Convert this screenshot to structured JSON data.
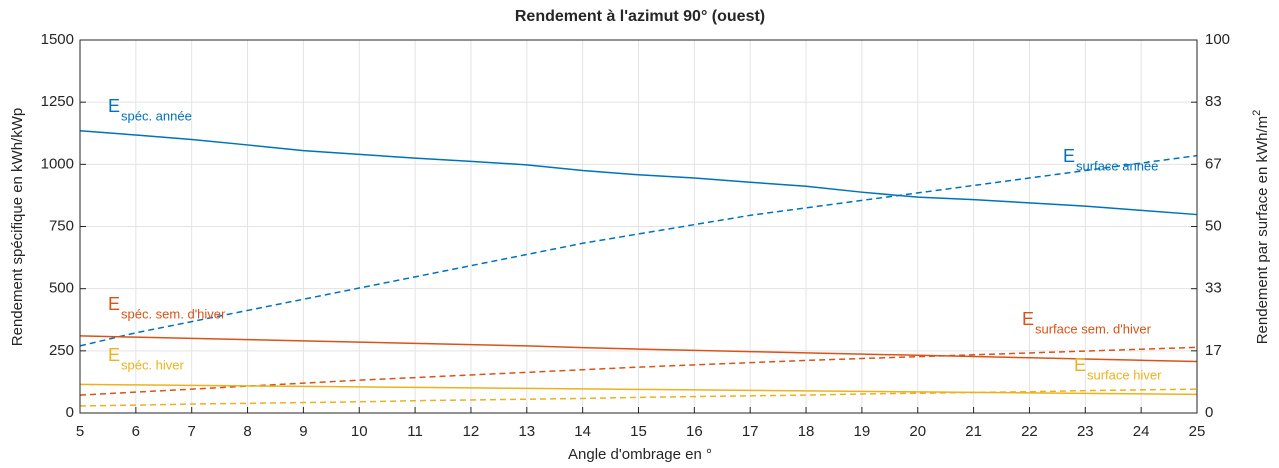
{
  "chart_data": {
    "type": "line",
    "title": "Rendement à l'azimut 90° (ouest)",
    "xlabel": "Angle d'ombrage en °",
    "ylabel": "Rendement spécifique en kWh/kWp",
    "y2label": {
      "text": "Rendement par surface en kWh/m",
      "superscript": "2"
    },
    "x": [
      5,
      6,
      7,
      8,
      9,
      10,
      11,
      12,
      13,
      14,
      15,
      16,
      17,
      18,
      19,
      20,
      21,
      22,
      23,
      24,
      25
    ],
    "xlim": [
      5,
      25
    ],
    "xticks": [
      5,
      6,
      7,
      8,
      9,
      10,
      11,
      12,
      13,
      14,
      15,
      16,
      17,
      18,
      19,
      20,
      21,
      22,
      23,
      24,
      25
    ],
    "ylim": [
      0,
      1500
    ],
    "yticks": [
      0,
      250,
      500,
      750,
      1000,
      1250,
      1500
    ],
    "y2lim": [
      0,
      100
    ],
    "y2ticks": [
      0,
      {
        "value": 16.67,
        "label": "17"
      },
      {
        "value": 33.33,
        "label": "33"
      },
      50,
      {
        "value": 66.67,
        "label": "67"
      },
      {
        "value": 83.33,
        "label": "83"
      },
      100
    ],
    "grid": true,
    "series": [
      {
        "name": "spéc. année",
        "color": "#0072bd",
        "linestyle": "solid",
        "values": [
          1135,
          1118,
          1100,
          1078,
          1055,
          1040,
          1025,
          1012,
          998,
          975,
          958,
          945,
          928,
          912,
          888,
          868,
          858,
          845,
          832,
          815,
          798
        ]
      },
      {
        "name": "surface année",
        "color": "#0072bd",
        "linestyle": "dashed",
        "axis": "y2",
        "values": [
          18,
          21.5,
          24.5,
          27.5,
          30.5,
          33.5,
          36.5,
          39.5,
          42.5,
          45.5,
          48,
          50.5,
          53,
          55,
          57,
          59,
          61,
          63,
          65,
          67,
          69
        ]
      },
      {
        "name": "spéc. sem. d'hiver",
        "color": "#d95319",
        "linestyle": "solid",
        "values": [
          310,
          305,
          300,
          295,
          290,
          285,
          280,
          275,
          270,
          263,
          257,
          252,
          247,
          242,
          237,
          232,
          227,
          222,
          217,
          212,
          207
        ]
      },
      {
        "name": "surface sem. d'hiver",
        "color": "#d95319",
        "linestyle": "dashed",
        "axis": "y2",
        "values": [
          4.8,
          5.6,
          6.4,
          7.2,
          8,
          8.8,
          9.5,
          10.2,
          10.9,
          11.6,
          12.3,
          12.9,
          13.5,
          14.1,
          14.6,
          15.1,
          15.6,
          16.1,
          16.6,
          17.1,
          17.6
        ]
      },
      {
        "name": "spéc. hiver",
        "color": "#edb120",
        "linestyle": "solid",
        "values": [
          115,
          113,
          111,
          109,
          107,
          105,
          103,
          101,
          99,
          97,
          95,
          93,
          91,
          89,
          87,
          85,
          83,
          81,
          79,
          77,
          75
        ]
      },
      {
        "name": "surface hiver",
        "color": "#edb120",
        "linestyle": "dashed",
        "axis": "y2",
        "values": [
          1.9,
          2.1,
          2.4,
          2.6,
          2.8,
          3,
          3.3,
          3.5,
          3.7,
          3.9,
          4.2,
          4.4,
          4.6,
          4.8,
          5.1,
          5.3,
          5.5,
          5.7,
          6,
          6.2,
          6.4
        ]
      }
    ],
    "annotations": [
      {
        "text": "E",
        "subscript": "spéc. année"
      },
      {
        "text": "E",
        "subscript": "surface année"
      },
      {
        "text": "E",
        "subscript": "spéc. sem. d'hiver"
      },
      {
        "text": "E",
        "subscript": "surface sem. d'hiver"
      },
      {
        "text": "E",
        "subscript": "spéc. hiver"
      },
      {
        "text": "E",
        "subscript": "surface hiver"
      }
    ]
  }
}
